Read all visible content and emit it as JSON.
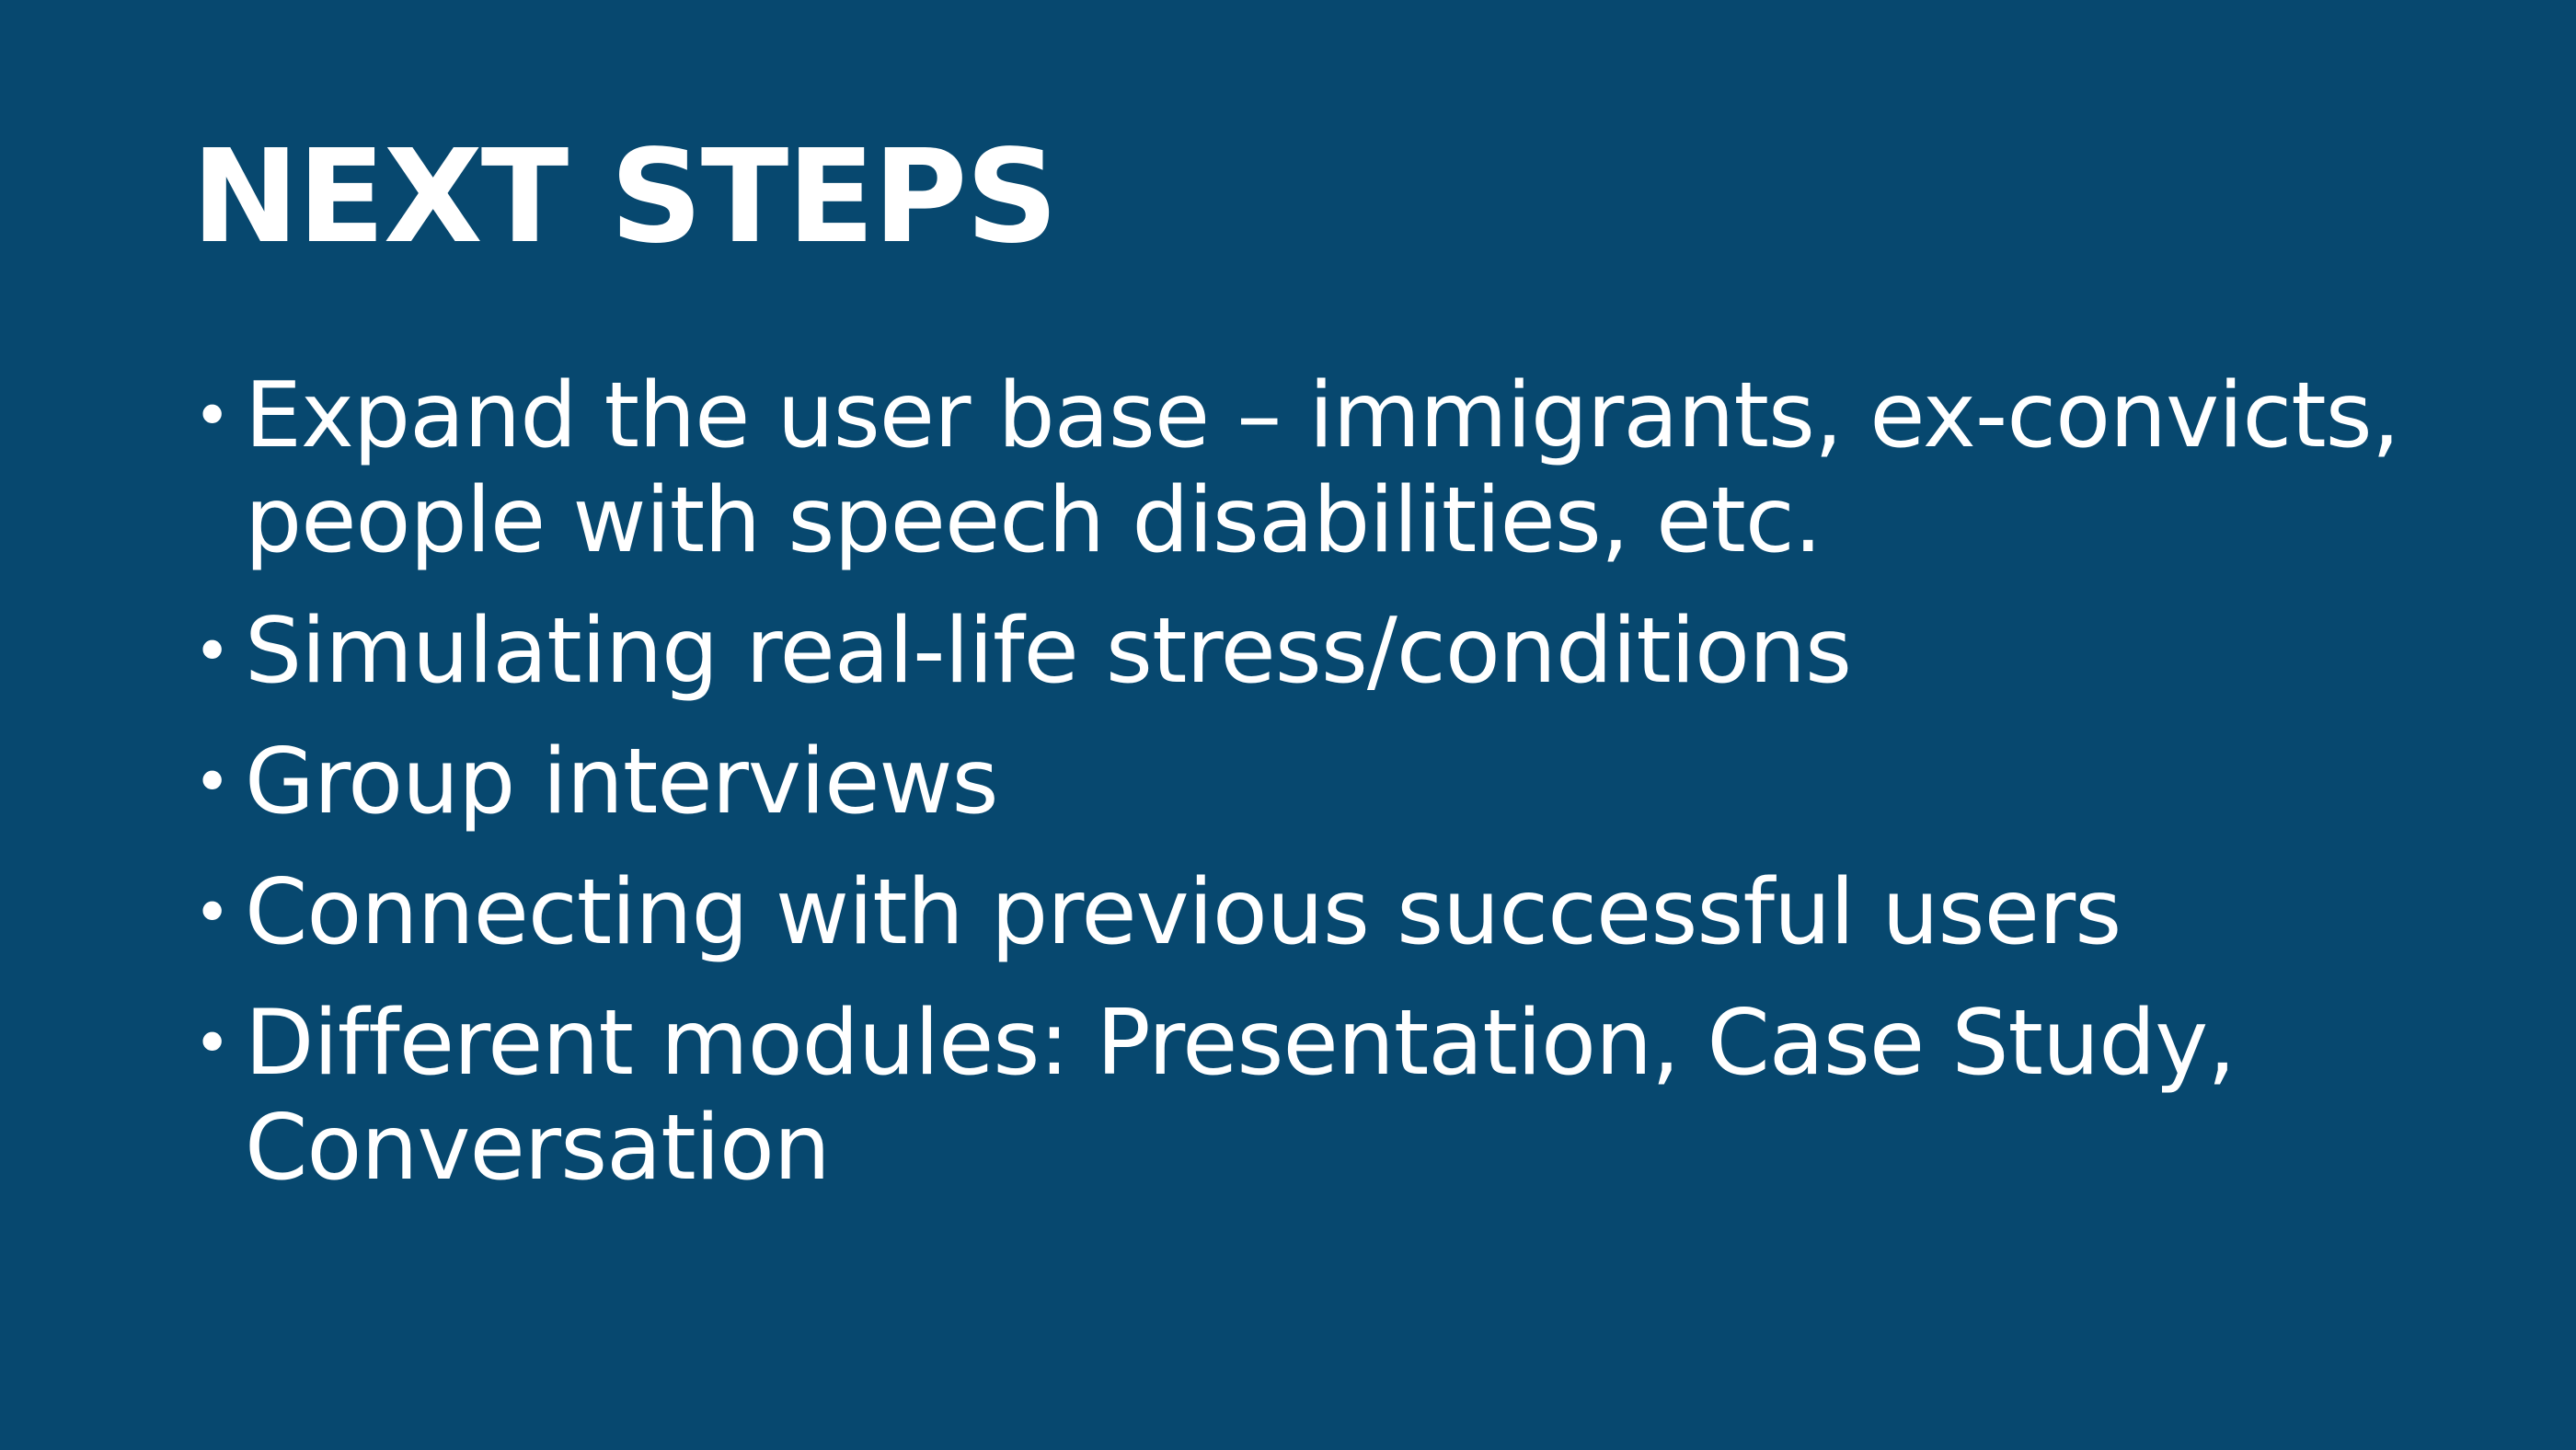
{
  "slide": {
    "background_color": "#07486f",
    "text_color": "#ffffff",
    "title": "NEXT STEPS",
    "bullet_glyph": "•",
    "bullets": [
      "Expand the user base – immigrants, ex-convicts, people with speech disabilities, etc.",
      "Simulating real-life stress/conditions",
      "Group interviews",
      "Connecting with previous successful users",
      "Different modules: Presentation, Case Study, Conversation"
    ]
  }
}
